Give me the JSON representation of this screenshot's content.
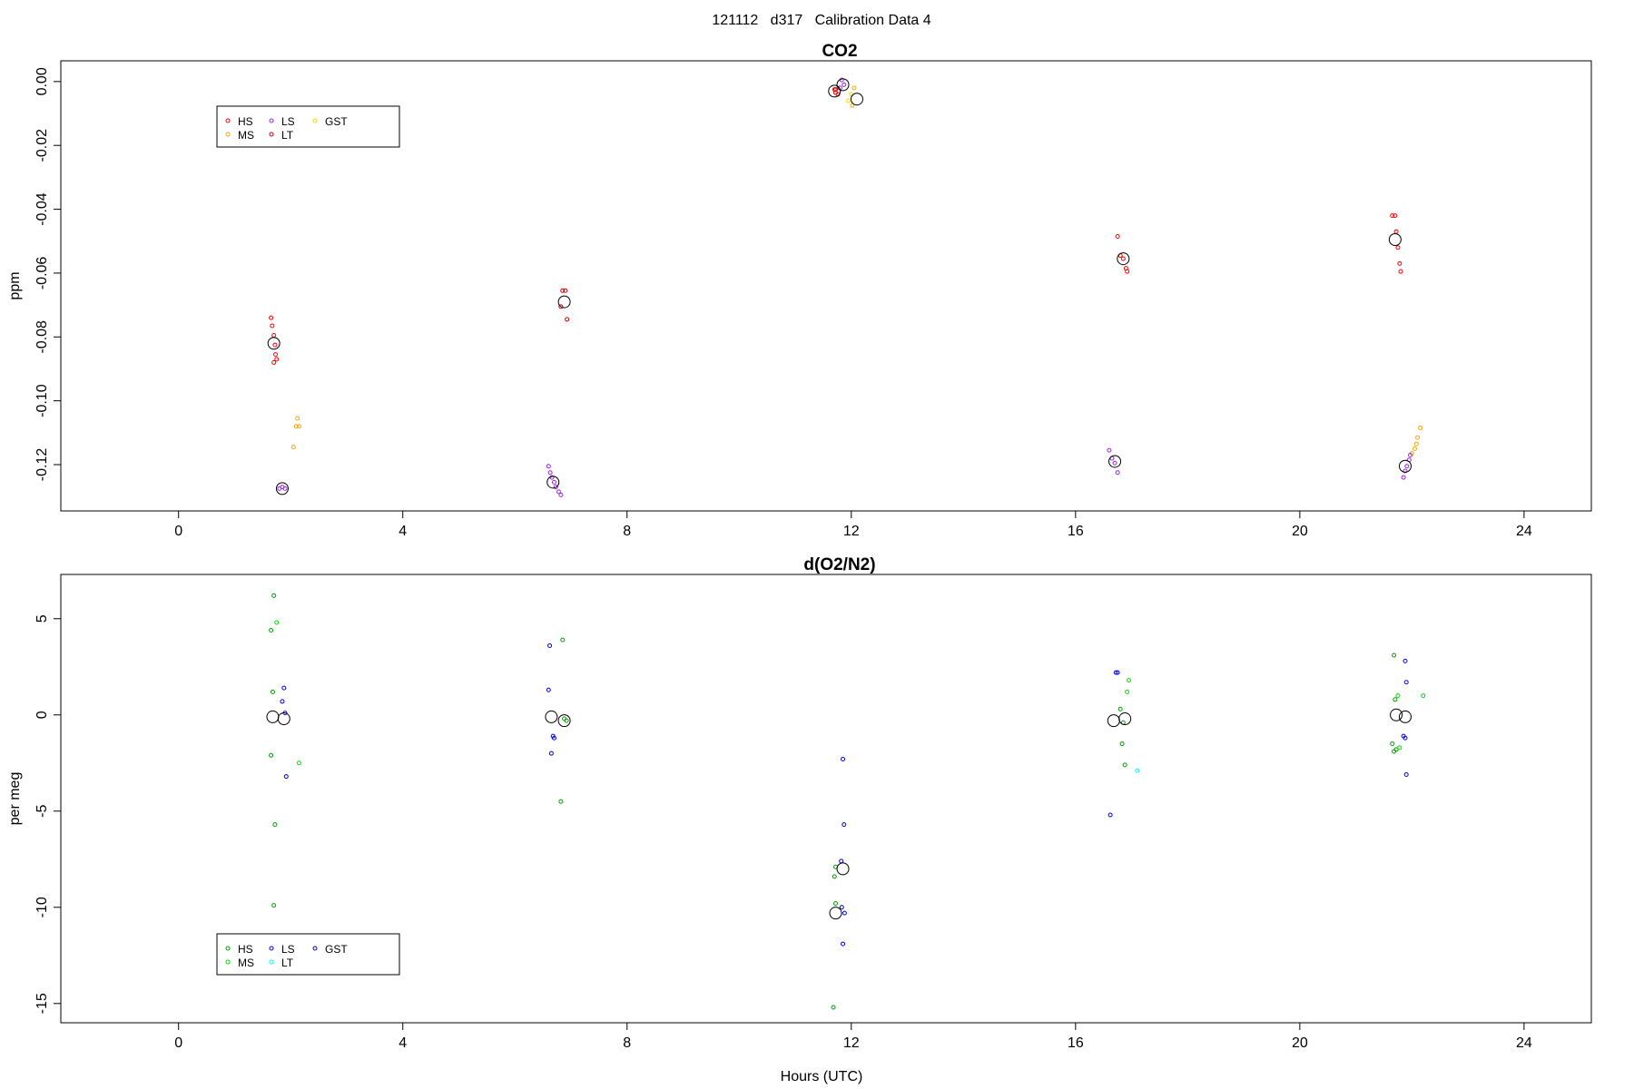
{
  "figure": {
    "supertitle": "121112   d317   Calibration Data 4"
  },
  "chart_data": [
    {
      "type": "scatter",
      "title": "CO2",
      "xlabel": "",
      "ylabel": "ppm",
      "xlim": [
        -2.1,
        25.2
      ],
      "ylim": [
        -0.1345,
        0.0065
      ],
      "xticks": [
        0,
        4,
        8,
        12,
        16,
        20,
        24
      ],
      "yticks": [
        0.0,
        -0.02,
        -0.04,
        -0.06,
        -0.08,
        -0.1,
        -0.12
      ],
      "ytick_labels": [
        "0.00",
        "-0.02",
        "-0.04",
        "-0.06",
        "-0.08",
        "-0.10",
        "-0.12"
      ],
      "grid": false,
      "legend": {
        "placement": "top-left",
        "columns": [
          [
            "HS",
            "MS"
          ],
          [
            "LS",
            "LT"
          ],
          [
            "GST"
          ]
        ],
        "colors": {
          "HS": "#ff0000",
          "MS": "#ffa500",
          "LS": "#a020f0",
          "LT": "#cd0000",
          "GST": "#ffd700"
        }
      },
      "series": [
        {
          "name": "HS",
          "color": "#ff0000",
          "points": [
            [
              1.65,
              -0.074
            ],
            [
              1.67,
              -0.0765
            ],
            [
              1.7,
              -0.0795
            ],
            [
              1.72,
              -0.0825
            ],
            [
              1.73,
              -0.0855
            ],
            [
              1.75,
              -0.087
            ],
            [
              1.7,
              -0.088
            ],
            [
              11.7,
              -0.0025
            ],
            [
              11.72,
              -0.0035
            ],
            [
              11.76,
              -0.004
            ],
            [
              16.75,
              -0.0485
            ],
            [
              16.8,
              -0.0545
            ],
            [
              16.85,
              -0.0555
            ],
            [
              16.9,
              -0.0585
            ],
            [
              16.92,
              -0.0595
            ],
            [
              21.65,
              -0.042
            ],
            [
              21.7,
              -0.042
            ],
            [
              21.72,
              -0.047
            ],
            [
              21.75,
              -0.052
            ],
            [
              21.78,
              -0.057
            ],
            [
              21.8,
              -0.0595
            ]
          ]
        },
        {
          "name": "MS",
          "color": "#ffa500",
          "points": [
            [
              2.05,
              -0.1145
            ],
            [
              2.1,
              -0.108
            ],
            [
              2.12,
              -0.1055
            ],
            [
              2.15,
              -0.108
            ],
            [
              12.02,
              -0.0075
            ],
            [
              12.05,
              -0.002
            ],
            [
              22.0,
              -0.1165
            ],
            [
              22.05,
              -0.115
            ],
            [
              22.08,
              -0.1135
            ],
            [
              22.1,
              -0.1115
            ],
            [
              22.15,
              -0.1085
            ]
          ]
        },
        {
          "name": "LS",
          "color": "#a020f0",
          "points": [
            [
              1.8,
              -0.1275
            ],
            [
              1.85,
              -0.127
            ],
            [
              1.9,
              -0.1275
            ],
            [
              6.6,
              -0.1205
            ],
            [
              6.63,
              -0.1225
            ],
            [
              6.66,
              -0.124
            ],
            [
              6.7,
              -0.1255
            ],
            [
              6.73,
              -0.127
            ],
            [
              6.78,
              -0.1285
            ],
            [
              6.82,
              -0.1295
            ],
            [
              11.8,
              -0.002
            ],
            [
              11.83,
              0.0005
            ],
            [
              11.87,
              -0.001
            ],
            [
              16.6,
              -0.1155
            ],
            [
              16.65,
              -0.118
            ],
            [
              16.7,
              -0.1195
            ],
            [
              16.75,
              -0.1225
            ],
            [
              21.85,
              -0.124
            ],
            [
              21.88,
              -0.122
            ],
            [
              21.91,
              -0.1205
            ],
            [
              21.95,
              -0.1185
            ],
            [
              21.97,
              -0.117
            ]
          ]
        },
        {
          "name": "LT",
          "color": "#cd0000",
          "points": [
            [
              6.85,
              -0.0655
            ],
            [
              6.9,
              -0.0655
            ],
            [
              6.93,
              -0.0745
            ],
            [
              6.82,
              -0.0705
            ],
            [
              11.72,
              -0.0025
            ]
          ]
        },
        {
          "name": "GST",
          "color": "#ffd700",
          "points": [
            [
              11.95,
              -0.006
            ],
            [
              12.0,
              -0.004
            ]
          ]
        },
        {
          "name": "",
          "color": "#000000",
          "marker": "large-circle",
          "points": [
            [
              1.7,
              -0.082
            ],
            [
              1.85,
              -0.1275
            ],
            [
              6.68,
              -0.1255
            ],
            [
              6.88,
              -0.069
            ],
            [
              11.7,
              -0.003
            ],
            [
              11.85,
              -0.001
            ],
            [
              12.1,
              -0.0055
            ],
            [
              16.7,
              -0.119
            ],
            [
              16.85,
              -0.0555
            ],
            [
              21.7,
              -0.0495
            ],
            [
              21.88,
              -0.1205
            ]
          ]
        }
      ]
    },
    {
      "type": "scatter",
      "title": "d(O2/N2)",
      "xlabel": "Hours (UTC)",
      "ylabel": "per meg",
      "xlim": [
        -2.1,
        25.2
      ],
      "ylim": [
        -16.0,
        7.3
      ],
      "xticks": [
        0,
        4,
        8,
        12,
        16,
        20,
        24
      ],
      "yticks": [
        5,
        0,
        -5,
        -10,
        -15
      ],
      "ytick_labels": [
        "5",
        "0",
        "-5",
        "-10",
        "-15"
      ],
      "grid": false,
      "legend": {
        "placement": "bottom-left",
        "columns": [
          [
            "HS",
            "MS"
          ],
          [
            "LS",
            "LT"
          ],
          [
            "GST"
          ]
        ],
        "colors": {
          "HS": "#00a000",
          "MS": "#00e000",
          "LS": "#0000ff",
          "LT": "#00ffff",
          "GST": "#0000cd"
        }
      },
      "series": [
        {
          "name": "HS",
          "color": "#00a000",
          "points": [
            [
              1.7,
              6.2
            ],
            [
              1.65,
              4.4
            ],
            [
              1.68,
              1.2
            ],
            [
              1.65,
              -2.1
            ],
            [
              1.72,
              -5.7
            ],
            [
              1.7,
              -9.9
            ],
            [
              6.85,
              3.9
            ],
            [
              6.88,
              -0.2
            ],
            [
              6.92,
              -0.3
            ],
            [
              6.82,
              -4.5
            ],
            [
              11.72,
              -7.9
            ],
            [
              11.7,
              -8.4
            ],
            [
              11.72,
              -9.8
            ],
            [
              11.68,
              -15.2
            ],
            [
              16.8,
              0.3
            ],
            [
              16.85,
              -0.4
            ],
            [
              16.83,
              -1.5
            ],
            [
              16.88,
              -2.6
            ],
            [
              21.68,
              3.1
            ],
            [
              21.7,
              0.8
            ],
            [
              21.65,
              -1.5
            ],
            [
              21.72,
              -1.8
            ],
            [
              21.68,
              -1.9
            ]
          ]
        },
        {
          "name": "MS",
          "color": "#00e000",
          "points": [
            [
              1.75,
              4.8
            ],
            [
              2.15,
              -2.5
            ],
            [
              16.95,
              1.8
            ],
            [
              16.92,
              1.2
            ],
            [
              21.75,
              1.0
            ],
            [
              22.2,
              1.0
            ],
            [
              21.78,
              -1.7
            ]
          ]
        },
        {
          "name": "LS",
          "color": "#0000ff",
          "points": [
            [
              1.88,
              1.4
            ],
            [
              1.85,
              0.7
            ],
            [
              1.9,
              0.1
            ],
            [
              6.62,
              3.6
            ],
            [
              6.6,
              1.3
            ],
            [
              6.7,
              -1.2
            ],
            [
              6.68,
              -1.1
            ],
            [
              6.65,
              -2.0
            ],
            [
              11.82,
              -7.6
            ],
            [
              11.88,
              -10.3
            ],
            [
              11.85,
              -11.9
            ],
            [
              16.75,
              2.2
            ],
            [
              16.72,
              2.2
            ],
            [
              16.62,
              -5.2
            ],
            [
              21.88,
              2.8
            ],
            [
              21.9,
              1.7
            ],
            [
              21.85,
              -1.1
            ],
            [
              21.88,
              -1.2
            ]
          ]
        },
        {
          "name": "LT",
          "color": "#00ffff",
          "points": [
            [
              17.1,
              -2.9
            ]
          ]
        },
        {
          "name": "GST",
          "color": "#0000cd",
          "points": [
            [
              1.92,
              -3.2
            ],
            [
              11.85,
              -2.3
            ],
            [
              11.87,
              -5.7
            ],
            [
              11.83,
              -10.0
            ],
            [
              21.9,
              -3.1
            ]
          ]
        },
        {
          "name": "",
          "color": "#000000",
          "marker": "large-circle",
          "points": [
            [
              1.68,
              -0.1
            ],
            [
              1.88,
              -0.2
            ],
            [
              6.65,
              -0.1
            ],
            [
              6.88,
              -0.3
            ],
            [
              11.72,
              -10.3
            ],
            [
              11.85,
              -8.0
            ],
            [
              16.68,
              -0.3
            ],
            [
              16.88,
              -0.2
            ],
            [
              21.72,
              0.0
            ],
            [
              21.88,
              -0.1
            ]
          ]
        }
      ]
    }
  ]
}
